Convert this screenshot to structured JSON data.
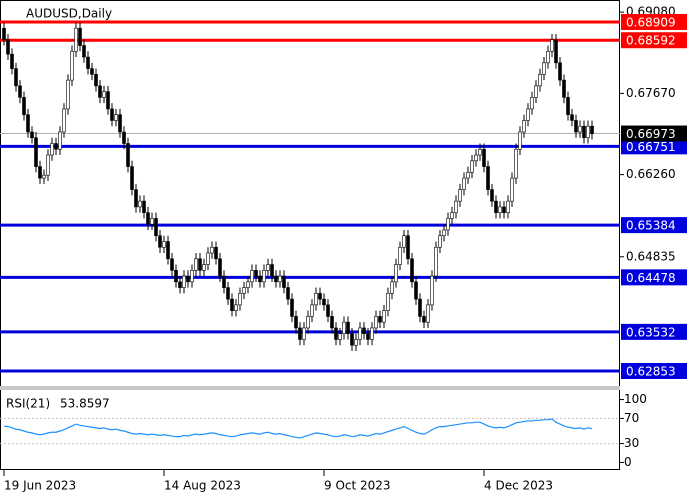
{
  "chart_data": [
    {
      "type": "candlestick",
      "title": "AUDUSD,Daily",
      "color": "#000000",
      "up_color": "#ffffff",
      "categories": [
        "19 Jun 2023",
        null,
        null,
        null,
        null,
        null,
        null,
        null,
        null,
        null,
        null,
        null,
        null,
        null,
        null,
        null,
        null,
        null,
        null,
        null,
        null,
        null,
        null,
        null,
        null,
        null,
        null,
        null,
        null,
        null,
        null,
        null,
        null,
        null,
        null,
        null,
        null,
        null,
        null,
        null,
        "14 Aug 2023",
        null,
        null,
        null,
        null,
        null,
        null,
        null,
        null,
        null,
        null,
        null,
        null,
        null,
        null,
        null,
        null,
        null,
        null,
        null,
        null,
        null,
        null,
        null,
        null,
        null,
        null,
        null,
        null,
        null,
        null,
        null,
        null,
        null,
        null,
        null,
        null,
        null,
        null,
        null,
        "9 Oct 2023",
        null,
        null,
        null,
        null,
        null,
        null,
        null,
        null,
        null,
        null,
        null,
        null,
        null,
        null,
        null,
        null,
        null,
        null,
        null,
        null,
        null,
        null,
        null,
        null,
        null,
        null,
        null,
        null,
        null,
        null,
        null,
        null,
        null,
        null,
        null,
        null,
        null,
        null,
        null,
        "4 Dec 2023",
        null,
        null,
        null,
        null,
        null,
        null,
        null,
        null,
        null,
        null,
        null,
        null,
        null,
        null,
        null,
        null,
        null,
        null,
        null,
        null,
        null,
        null,
        null,
        null,
        null,
        null,
        null
      ],
      "open": [
        0.688,
        0.686,
        0.6835,
        0.681,
        0.678,
        0.676,
        0.673,
        0.67,
        0.669,
        0.664,
        0.662,
        0.6625,
        0.666,
        0.668,
        0.667,
        0.67,
        0.674,
        0.679,
        0.684,
        0.688,
        0.685,
        0.683,
        0.681,
        0.68,
        0.678,
        0.676,
        0.677,
        0.674,
        0.672,
        0.673,
        0.67,
        0.668,
        0.664,
        0.66,
        0.657,
        0.658,
        0.656,
        0.654,
        0.655,
        0.652,
        0.65,
        0.651,
        0.648,
        0.646,
        0.644,
        0.643,
        0.645,
        0.644,
        0.646,
        0.648,
        0.646,
        0.647,
        0.649,
        0.65,
        0.648,
        0.645,
        0.643,
        0.641,
        0.639,
        0.64,
        0.642,
        0.643,
        0.644,
        0.646,
        0.645,
        0.644,
        0.646,
        0.647,
        0.645,
        0.644,
        0.645,
        0.643,
        0.641,
        0.638,
        0.636,
        0.634,
        0.636,
        0.638,
        0.64,
        0.642,
        0.641,
        0.64,
        0.638,
        0.636,
        0.634,
        0.635,
        0.637,
        0.635,
        0.633,
        0.634,
        0.636,
        0.635,
        0.634,
        0.636,
        0.638,
        0.637,
        0.639,
        0.642,
        0.644,
        0.647,
        0.65,
        0.652,
        0.648,
        0.644,
        0.641,
        0.638,
        0.637,
        0.64,
        0.645,
        0.65,
        0.652,
        0.653,
        0.655,
        0.656,
        0.658,
        0.66,
        0.662,
        0.663,
        0.665,
        0.666,
        0.667,
        0.664,
        0.66,
        0.658,
        0.656,
        0.657,
        0.656,
        0.658,
        0.662,
        0.667,
        0.67,
        0.672,
        0.674,
        0.676,
        0.678,
        0.68,
        0.682,
        0.684,
        0.686,
        0.682,
        0.679,
        0.676,
        0.673,
        0.672,
        0.67,
        0.671,
        0.669,
        0.671
      ],
      "high": [
        0.689,
        0.687,
        0.6845,
        0.682,
        0.679,
        0.677,
        0.674,
        0.671,
        0.67,
        0.665,
        0.6635,
        0.667,
        0.669,
        0.669,
        0.671,
        0.675,
        0.68,
        0.685,
        0.689,
        0.689,
        0.686,
        0.684,
        0.682,
        0.681,
        0.679,
        0.678,
        0.678,
        0.675,
        0.674,
        0.674,
        0.671,
        0.669,
        0.665,
        0.661,
        0.659,
        0.659,
        0.657,
        0.656,
        0.656,
        0.653,
        0.652,
        0.652,
        0.649,
        0.647,
        0.645,
        0.646,
        0.646,
        0.647,
        0.649,
        0.649,
        0.648,
        0.65,
        0.651,
        0.651,
        0.649,
        0.646,
        0.644,
        0.642,
        0.641,
        0.643,
        0.644,
        0.645,
        0.647,
        0.647,
        0.646,
        0.647,
        0.648,
        0.648,
        0.646,
        0.646,
        0.646,
        0.644,
        0.642,
        0.639,
        0.637,
        0.637,
        0.639,
        0.641,
        0.643,
        0.643,
        0.642,
        0.641,
        0.639,
        0.637,
        0.636,
        0.638,
        0.638,
        0.636,
        0.635,
        0.637,
        0.637,
        0.636,
        0.637,
        0.639,
        0.639,
        0.64,
        0.643,
        0.645,
        0.648,
        0.651,
        0.653,
        0.653,
        0.649,
        0.645,
        0.642,
        0.639,
        0.641,
        0.646,
        0.651,
        0.653,
        0.654,
        0.656,
        0.657,
        0.659,
        0.661,
        0.663,
        0.664,
        0.666,
        0.667,
        0.668,
        0.668,
        0.665,
        0.661,
        0.659,
        0.658,
        0.658,
        0.659,
        0.663,
        0.668,
        0.671,
        0.673,
        0.675,
        0.677,
        0.679,
        0.681,
        0.683,
        0.685,
        0.687,
        0.687,
        0.683,
        0.68,
        0.677,
        0.674,
        0.673,
        0.672,
        0.672,
        0.672,
        0.672
      ],
      "low": [
        0.685,
        0.6825,
        0.68,
        0.677,
        0.675,
        0.672,
        0.669,
        0.668,
        0.663,
        0.661,
        0.661,
        0.6615,
        0.665,
        0.666,
        0.666,
        0.669,
        0.673,
        0.678,
        0.683,
        0.684,
        0.682,
        0.68,
        0.679,
        0.677,
        0.675,
        0.675,
        0.673,
        0.671,
        0.671,
        0.669,
        0.667,
        0.663,
        0.659,
        0.656,
        0.656,
        0.655,
        0.653,
        0.653,
        0.651,
        0.649,
        0.649,
        0.647,
        0.645,
        0.643,
        0.642,
        0.642,
        0.643,
        0.643,
        0.645,
        0.645,
        0.645,
        0.646,
        0.648,
        0.647,
        0.644,
        0.642,
        0.64,
        0.638,
        0.638,
        0.639,
        0.641,
        0.642,
        0.643,
        0.644,
        0.643,
        0.643,
        0.645,
        0.644,
        0.643,
        0.643,
        0.642,
        0.64,
        0.637,
        0.635,
        0.633,
        0.633,
        0.635,
        0.637,
        0.639,
        0.64,
        0.639,
        0.637,
        0.635,
        0.633,
        0.633,
        0.634,
        0.634,
        0.632,
        0.632,
        0.633,
        0.634,
        0.633,
        0.633,
        0.635,
        0.636,
        0.636,
        0.638,
        0.641,
        0.643,
        0.646,
        0.649,
        0.647,
        0.643,
        0.64,
        0.637,
        0.636,
        0.636,
        0.639,
        0.644,
        0.649,
        0.651,
        0.652,
        0.654,
        0.655,
        0.657,
        0.659,
        0.661,
        0.662,
        0.664,
        0.665,
        0.663,
        0.659,
        0.657,
        0.655,
        0.655,
        0.655,
        0.655,
        0.657,
        0.661,
        0.666,
        0.669,
        0.671,
        0.673,
        0.675,
        0.677,
        0.679,
        0.681,
        0.683,
        0.681,
        0.678,
        0.675,
        0.672,
        0.671,
        0.669,
        0.669,
        0.668,
        0.668,
        0.6687
      ],
      "close": [
        0.686,
        0.6835,
        0.681,
        0.678,
        0.676,
        0.673,
        0.67,
        0.669,
        0.664,
        0.662,
        0.6625,
        0.666,
        0.668,
        0.667,
        0.67,
        0.674,
        0.679,
        0.684,
        0.688,
        0.685,
        0.683,
        0.681,
        0.68,
        0.678,
        0.676,
        0.677,
        0.674,
        0.672,
        0.673,
        0.67,
        0.668,
        0.664,
        0.66,
        0.657,
        0.658,
        0.656,
        0.654,
        0.655,
        0.652,
        0.65,
        0.651,
        0.648,
        0.646,
        0.644,
        0.643,
        0.645,
        0.644,
        0.646,
        0.648,
        0.646,
        0.647,
        0.649,
        0.65,
        0.648,
        0.645,
        0.643,
        0.641,
        0.639,
        0.64,
        0.642,
        0.643,
        0.644,
        0.646,
        0.645,
        0.644,
        0.646,
        0.647,
        0.645,
        0.644,
        0.645,
        0.643,
        0.641,
        0.638,
        0.636,
        0.634,
        0.636,
        0.638,
        0.64,
        0.642,
        0.641,
        0.64,
        0.638,
        0.636,
        0.634,
        0.635,
        0.637,
        0.635,
        0.633,
        0.634,
        0.636,
        0.635,
        0.634,
        0.636,
        0.638,
        0.637,
        0.639,
        0.642,
        0.644,
        0.647,
        0.65,
        0.652,
        0.648,
        0.644,
        0.641,
        0.638,
        0.637,
        0.64,
        0.645,
        0.65,
        0.652,
        0.653,
        0.655,
        0.656,
        0.658,
        0.66,
        0.662,
        0.663,
        0.665,
        0.666,
        0.667,
        0.664,
        0.66,
        0.658,
        0.656,
        0.657,
        0.656,
        0.658,
        0.662,
        0.667,
        0.67,
        0.672,
        0.674,
        0.676,
        0.678,
        0.68,
        0.682,
        0.684,
        0.686,
        0.682,
        0.679,
        0.676,
        0.673,
        0.672,
        0.67,
        0.671,
        0.669,
        0.671,
        0.6697
      ],
      "ylim": [
        0.6261,
        0.6929
      ],
      "yticks": [
        {
          "value": 0.6908,
          "label": "0.69080"
        },
        {
          "value": 0.6767,
          "label": "0.67670"
        },
        {
          "value": 0.6626,
          "label": "0.66260"
        },
        0.64835
      ],
      "current_price": 0.66973,
      "levels": [
        {
          "value": 0.68909,
          "color": "#ff0000"
        },
        {
          "value": 0.68592,
          "color": "#ff0000"
        },
        {
          "value": 0.66751,
          "color": "#0000dd"
        },
        {
          "value": 0.65384,
          "color": "#0000dd"
        },
        {
          "value": 0.64478,
          "color": "#0000dd"
        },
        {
          "value": 0.63532,
          "color": "#0000dd"
        },
        {
          "value": 0.62853,
          "color": "#0000dd"
        }
      ]
    },
    {
      "type": "line",
      "title": "RSI(21)",
      "color": "#1e90ff",
      "values": [
        58,
        57,
        55,
        53,
        52,
        50,
        48,
        47,
        45,
        44,
        45,
        47,
        48,
        48,
        50,
        52,
        55,
        58,
        61,
        59,
        58,
        57,
        56,
        55,
        54,
        55,
        53,
        52,
        53,
        51,
        50,
        48,
        46,
        45,
        46,
        45,
        44,
        45,
        44,
        43,
        44,
        43,
        42,
        41,
        41,
        43,
        42,
        44,
        45,
        44,
        45,
        46,
        47,
        46,
        44,
        43,
        42,
        41,
        42,
        44,
        45,
        46,
        47,
        46,
        45,
        47,
        48,
        46,
        45,
        46,
        44,
        43,
        41,
        40,
        39,
        41,
        43,
        45,
        47,
        46,
        45,
        44,
        42,
        41,
        42,
        44,
        43,
        41,
        42,
        44,
        43,
        42,
        44,
        46,
        45,
        47,
        49,
        51,
        53,
        55,
        57,
        54,
        51,
        48,
        46,
        45,
        48,
        52,
        55,
        57,
        57,
        58,
        59,
        60,
        61,
        62,
        63,
        63,
        64,
        64,
        61,
        58,
        56,
        55,
        56,
        55,
        57,
        60,
        63,
        64,
        65,
        66,
        66,
        67,
        67,
        68,
        68,
        69,
        64,
        61,
        58,
        56,
        55,
        54,
        55,
        53,
        55,
        53.8597
      ],
      "ylim": [
        -12,
        112
      ],
      "yticks": [
        100,
        70,
        30,
        0
      ],
      "levels": [
        70,
        30
      ]
    }
  ]
}
